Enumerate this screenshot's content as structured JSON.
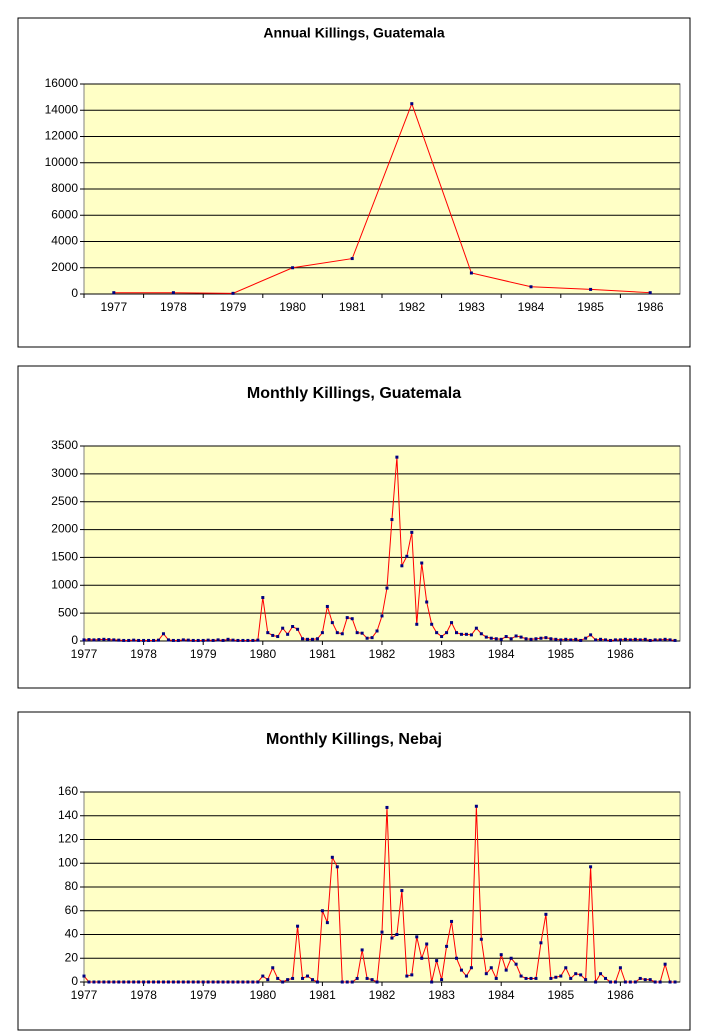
{
  "chart_data": [
    {
      "type": "line",
      "title": "Annual Killings, Guatemala",
      "categories": [
        "1977",
        "1978",
        "1979",
        "1980",
        "1981",
        "1982",
        "1983",
        "1984",
        "1985",
        "1986"
      ],
      "values": [
        100,
        100,
        50,
        2000,
        2700,
        14500,
        1600,
        550,
        350,
        100
      ],
      "color": "#ff0000",
      "marker_color": "#000080",
      "ylim": [
        0,
        16000
      ],
      "yticks": [
        0,
        2000,
        4000,
        6000,
        8000,
        10000,
        12000,
        14000,
        16000
      ],
      "grid": true
    },
    {
      "type": "line",
      "title": "Monthly Killings, Guatemala",
      "categories": [
        "1977",
        null,
        null,
        null,
        null,
        null,
        null,
        null,
        null,
        null,
        null,
        null,
        "1978",
        null,
        null,
        null,
        null,
        null,
        null,
        null,
        null,
        null,
        null,
        null,
        "1979",
        null,
        null,
        null,
        null,
        null,
        null,
        null,
        null,
        null,
        null,
        null,
        "1980",
        null,
        null,
        null,
        null,
        null,
        null,
        null,
        null,
        null,
        null,
        null,
        "1981",
        null,
        null,
        null,
        null,
        null,
        null,
        null,
        null,
        null,
        null,
        null,
        "1982",
        null,
        null,
        null,
        null,
        null,
        null,
        null,
        null,
        null,
        null,
        null,
        "1983",
        null,
        null,
        null,
        null,
        null,
        null,
        null,
        null,
        null,
        null,
        null,
        "1984",
        null,
        null,
        null,
        null,
        null,
        null,
        null,
        null,
        null,
        null,
        null,
        "1985",
        null,
        null,
        null,
        null,
        null,
        null,
        null,
        null,
        null,
        null,
        null,
        "1986",
        null,
        null,
        null,
        null,
        null,
        null,
        null,
        null,
        null,
        null,
        null
      ],
      "values": [
        20,
        25,
        20,
        25,
        30,
        25,
        20,
        15,
        10,
        10,
        15,
        10,
        10,
        10,
        10,
        15,
        130,
        20,
        10,
        10,
        20,
        15,
        10,
        10,
        10,
        15,
        10,
        20,
        10,
        30,
        15,
        10,
        10,
        10,
        10,
        15,
        780,
        150,
        100,
        80,
        230,
        120,
        260,
        210,
        40,
        30,
        30,
        40,
        150,
        620,
        330,
        150,
        130,
        420,
        400,
        150,
        140,
        50,
        60,
        180,
        450,
        950,
        2180,
        3300,
        1350,
        1520,
        1950,
        300,
        1400,
        700,
        300,
        150,
        80,
        150,
        330,
        150,
        120,
        120,
        110,
        230,
        130,
        70,
        50,
        40,
        30,
        80,
        40,
        90,
        70,
        40,
        30,
        40,
        50,
        60,
        40,
        30,
        20,
        30,
        20,
        30,
        10,
        50,
        110,
        20,
        30,
        20,
        10,
        20,
        20,
        30,
        20,
        30,
        20,
        30,
        10,
        20,
        20,
        30,
        20,
        10
      ],
      "color": "#ff0000",
      "marker_color": "#000080",
      "ylim": [
        0,
        3500
      ],
      "yticks": [
        0,
        500,
        1000,
        1500,
        2000,
        2500,
        3000,
        3500
      ],
      "grid": true
    },
    {
      "type": "line",
      "title": "Monthly Killings, Nebaj",
      "categories": [
        "1977",
        null,
        null,
        null,
        null,
        null,
        null,
        null,
        null,
        null,
        null,
        null,
        "1978",
        null,
        null,
        null,
        null,
        null,
        null,
        null,
        null,
        null,
        null,
        null,
        "1979",
        null,
        null,
        null,
        null,
        null,
        null,
        null,
        null,
        null,
        null,
        null,
        "1980",
        null,
        null,
        null,
        null,
        null,
        null,
        null,
        null,
        null,
        null,
        null,
        "1981",
        null,
        null,
        null,
        null,
        null,
        null,
        null,
        null,
        null,
        null,
        null,
        "1982",
        null,
        null,
        null,
        null,
        null,
        null,
        null,
        null,
        null,
        null,
        null,
        "1983",
        null,
        null,
        null,
        null,
        null,
        null,
        null,
        null,
        null,
        null,
        null,
        "1984",
        null,
        null,
        null,
        null,
        null,
        null,
        null,
        null,
        null,
        null,
        null,
        "1985",
        null,
        null,
        null,
        null,
        null,
        null,
        null,
        null,
        null,
        null,
        null,
        "1986",
        null,
        null,
        null,
        null,
        null,
        null,
        null,
        null,
        null,
        null,
        null
      ],
      "values": [
        5,
        0,
        0,
        0,
        0,
        0,
        0,
        0,
        0,
        0,
        0,
        0,
        0,
        0,
        0,
        0,
        0,
        0,
        0,
        0,
        0,
        0,
        0,
        0,
        0,
        0,
        0,
        0,
        0,
        0,
        0,
        0,
        0,
        0,
        0,
        0,
        5,
        2,
        12,
        3,
        0,
        2,
        3,
        47,
        3,
        5,
        2,
        0,
        60,
        50,
        105,
        97,
        0,
        0,
        0,
        3,
        27,
        3,
        2,
        0,
        42,
        147,
        37,
        40,
        77,
        5,
        6,
        38,
        20,
        32,
        0,
        18,
        2,
        30,
        51,
        20,
        10,
        5,
        12,
        148,
        36,
        7,
        12,
        3,
        23,
        10,
        20,
        15,
        5,
        3,
        3,
        3,
        33,
        57,
        3,
        4,
        5,
        12,
        3,
        7,
        6,
        2,
        97,
        0,
        7,
        3,
        0,
        0,
        12,
        0,
        0,
        0,
        3,
        2,
        2,
        0,
        0,
        15,
        0,
        0
      ],
      "color": "#ff0000",
      "marker_color": "#000080",
      "ylim": [
        0,
        160
      ],
      "yticks": [
        0,
        20,
        40,
        60,
        80,
        100,
        120,
        140,
        160
      ],
      "grid": true
    }
  ]
}
